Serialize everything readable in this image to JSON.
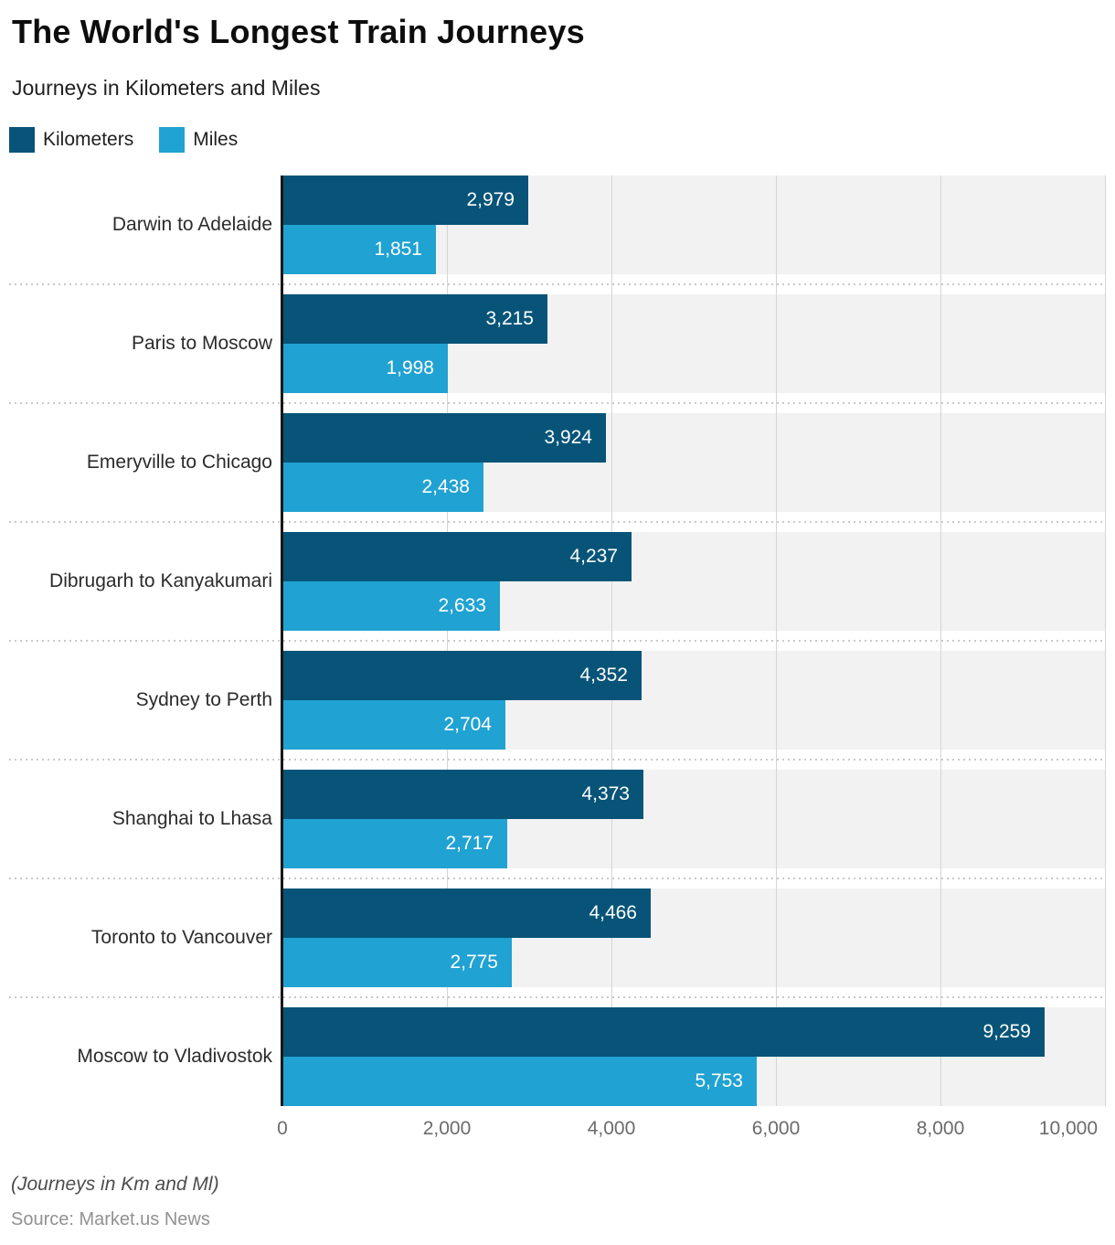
{
  "header": {
    "title": "The World's Longest Train Journeys",
    "subtitle": "Journeys in Kilometers and Miles"
  },
  "legend": [
    {
      "label": "Kilometers",
      "color": "#075478"
    },
    {
      "label": "Miles",
      "color": "#20a2d2"
    }
  ],
  "chart_data": {
    "type": "bar",
    "orientation": "horizontal",
    "title": "The World's Longest Train Journeys",
    "subtitle": "Journeys in Kilometers and Miles",
    "categories": [
      "Darwin to Adelaide",
      "Paris to Moscow",
      "Emeryville to Chicago",
      "Dibrugarh to Kanyakumari",
      "Sydney to Perth",
      "Shanghai to Lhasa",
      "Toronto to Vancouver",
      "Moscow to Vladivostok"
    ],
    "series": [
      {
        "name": "Kilometers",
        "color": "#075478",
        "values": [
          2979,
          3215,
          3924,
          4237,
          4352,
          4373,
          4466,
          9259
        ],
        "labels": [
          "2,979",
          "3,215",
          "3,924",
          "4,237",
          "4,352",
          "4,373",
          "4,466",
          "9,259"
        ]
      },
      {
        "name": "Miles",
        "color": "#20a2d2",
        "values": [
          1851,
          1998,
          2438,
          2633,
          2704,
          2717,
          2775,
          5753
        ],
        "labels": [
          "1,851",
          "1,998",
          "2,438",
          "2,633",
          "2,704",
          "2,717",
          "2,775",
          "5,753"
        ]
      }
    ],
    "x_axis": {
      "min": 0,
      "max": 10000,
      "ticks": [
        {
          "value": 0,
          "label": "0"
        },
        {
          "value": 2000,
          "label": "2,000"
        },
        {
          "value": 4000,
          "label": "4,000"
        },
        {
          "value": 6000,
          "label": "6,000"
        },
        {
          "value": 8000,
          "label": "8,000"
        },
        {
          "value": 10000,
          "label": "10,000"
        }
      ]
    },
    "grid": true,
    "legend_position": "top-left",
    "plot_background": "#f2f2f2",
    "gridline_color": "#d5d5d5"
  },
  "footer": {
    "note": "(Journeys in Km and Ml)",
    "source": "Source: Market.us News"
  }
}
